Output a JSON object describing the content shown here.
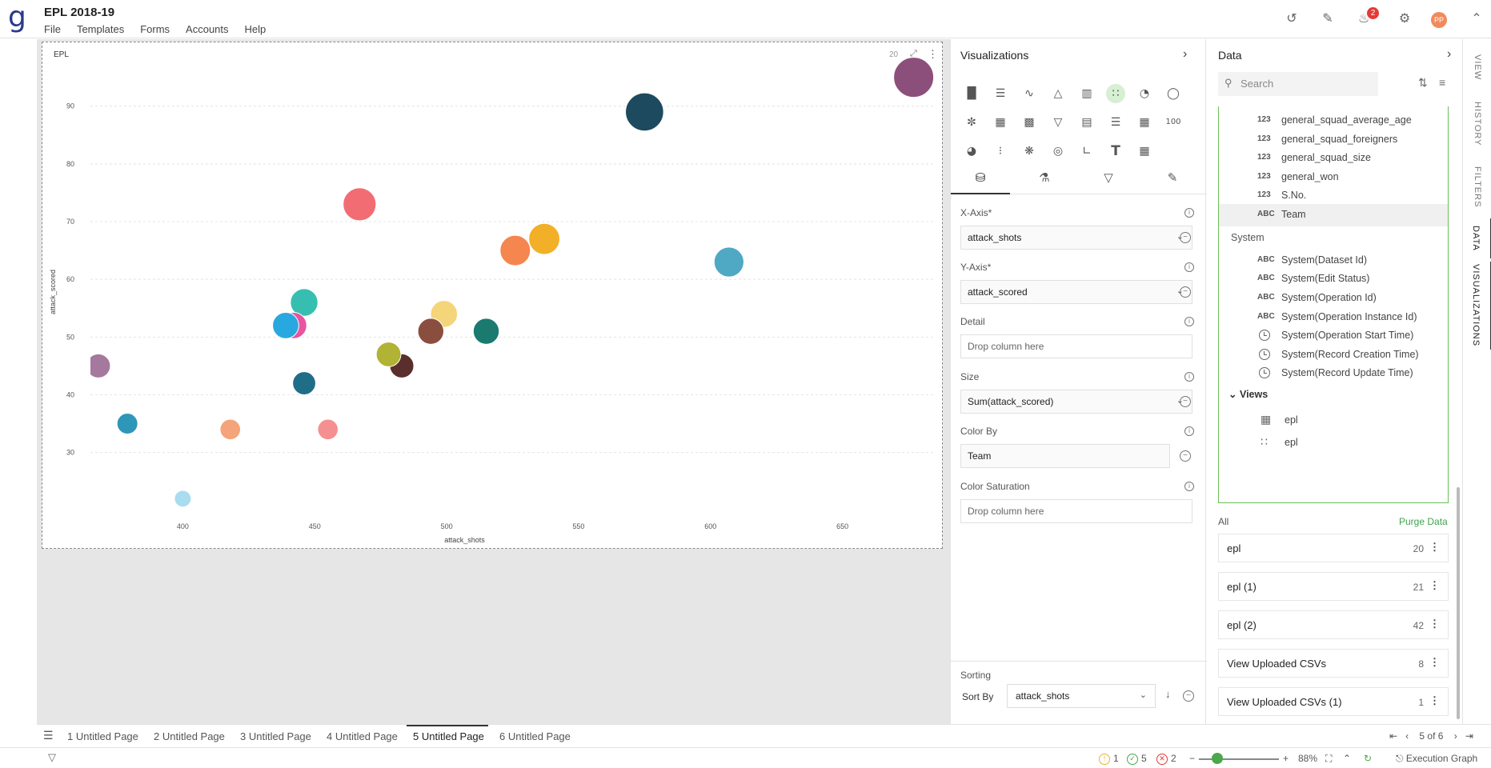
{
  "app": {
    "logo": "g",
    "title": "EPL 2018-19",
    "menu": [
      "File",
      "Templates",
      "Forms",
      "Accounts",
      "Help"
    ],
    "notification_count": "2",
    "user_initials": "PP"
  },
  "chart_widget": {
    "title": "EPL",
    "count": "20",
    "expand_icon": "expand-icon",
    "more_icon": "more-vertical-icon"
  },
  "chart_data": {
    "type": "scatter",
    "xlabel": "attack_shots",
    "ylabel": "attack_scored",
    "xlim": [
      365,
      685
    ],
    "ylim": [
      19,
      98
    ],
    "xticks": [
      400,
      450,
      500,
      550,
      600,
      650
    ],
    "yticks": [
      30,
      40,
      50,
      60,
      70,
      80,
      90
    ],
    "grid": true,
    "points": [
      {
        "x": 677,
        "y": 95,
        "size": 95,
        "color": "#8c4f7c"
      },
      {
        "x": 575,
        "y": 89,
        "size": 89,
        "color": "#1d4a5e"
      },
      {
        "x": 467,
        "y": 73,
        "size": 73,
        "color": "#f26d73"
      },
      {
        "x": 537,
        "y": 67,
        "size": 67,
        "color": "#f2b028"
      },
      {
        "x": 526,
        "y": 65,
        "size": 65,
        "color": "#f5864f"
      },
      {
        "x": 607,
        "y": 63,
        "size": 63,
        "color": "#4fa8c4"
      },
      {
        "x": 446,
        "y": 56,
        "size": 56,
        "color": "#36bfb0"
      },
      {
        "x": 499,
        "y": 54,
        "size": 54,
        "color": "#f5d57a"
      },
      {
        "x": 442,
        "y": 52,
        "size": 52,
        "color": "#e854a0"
      },
      {
        "x": 439,
        "y": 52,
        "size": 52,
        "color": "#29a8e0"
      },
      {
        "x": 515,
        "y": 51,
        "size": 51,
        "color": "#1a7a70"
      },
      {
        "x": 494,
        "y": 51,
        "size": 51,
        "color": "#8a4e3e"
      },
      {
        "x": 483,
        "y": 45,
        "size": 45,
        "color": "#5a2e2a"
      },
      {
        "x": 478,
        "y": 47,
        "size": 47,
        "color": "#b0b334"
      },
      {
        "x": 368,
        "y": 45,
        "size": 45,
        "color": "#a5789e"
      },
      {
        "x": 446,
        "y": 42,
        "size": 42,
        "color": "#206d88"
      },
      {
        "x": 379,
        "y": 35,
        "size": 35,
        "color": "#2e97b8"
      },
      {
        "x": 418,
        "y": 34,
        "size": 34,
        "color": "#f5a37a"
      },
      {
        "x": 455,
        "y": 34,
        "size": 34,
        "color": "#f59090"
      },
      {
        "x": 400,
        "y": 22,
        "size": 22,
        "color": "#a8dcef"
      }
    ]
  },
  "viz_panel": {
    "title": "Visualizations",
    "icons": [
      "column-chart-icon",
      "bar-chart-icon",
      "line-chart-icon",
      "area-chart-icon",
      "combo-chart-icon",
      "scatter-chart-icon",
      "pie-chart-icon",
      "donut-chart-icon",
      "sunburst-chart-icon",
      "pivot-table-icon",
      "card-icon",
      "funnel-icon",
      "table-icon",
      "list-icon",
      "tile-icon",
      "kpi-icon",
      "gauge-icon",
      "heatmap-icon",
      "network-icon",
      "globe-icon",
      "histogram-icon",
      "text-icon",
      "calendar-icon"
    ],
    "kpi_label": "100",
    "text_label": "T",
    "tabs": [
      "data-tab",
      "format-tab",
      "filter-tab",
      "analytics-tab"
    ],
    "fields": {
      "x_axis": {
        "label": "X-Axis*",
        "value": "attack_shots"
      },
      "y_axis": {
        "label": "Y-Axis*",
        "value": "attack_scored"
      },
      "detail": {
        "label": "Detail",
        "placeholder": "Drop column here"
      },
      "size": {
        "label": "Size",
        "value": "Sum(attack_scored)"
      },
      "color_by": {
        "label": "Color By",
        "value": "Team"
      },
      "color_saturation": {
        "label": "Color Saturation",
        "placeholder": "Drop column here"
      }
    },
    "sorting": {
      "title": "Sorting",
      "sort_by_label": "Sort By",
      "sort_by_value": "attack_shots"
    }
  },
  "data_panel": {
    "title": "Data",
    "search_placeholder": "Search",
    "fields": [
      {
        "type": "123",
        "name": "general_squad_average_age"
      },
      {
        "type": "123",
        "name": "general_squad_foreigners"
      },
      {
        "type": "123",
        "name": "general_squad_size"
      },
      {
        "type": "123",
        "name": "general_won"
      },
      {
        "type": "123",
        "name": "S.No."
      },
      {
        "type": "ABC",
        "name": "Team"
      }
    ],
    "system_label": "System",
    "system_fields": [
      {
        "type": "ABC",
        "name": "System(Dataset Id)"
      },
      {
        "type": "ABC",
        "name": "System(Edit Status)"
      },
      {
        "type": "ABC",
        "name": "System(Operation Id)"
      },
      {
        "type": "ABC",
        "name": "System(Operation Instance Id)"
      },
      {
        "type": "clock",
        "name": "System(Operation Start Time)"
      },
      {
        "type": "clock",
        "name": "System(Record Creation Time)"
      },
      {
        "type": "clock",
        "name": "System(Record Update Time)"
      }
    ],
    "views_label": "Views",
    "views": [
      {
        "icon": "table-view-icon",
        "name": "epl"
      },
      {
        "icon": "scatter-view-icon",
        "name": "epl"
      }
    ],
    "all_label": "All",
    "purge_label": "Purge Data",
    "datasets": [
      {
        "name": "epl",
        "count": "20"
      },
      {
        "name": "epl (1)",
        "count": "21"
      },
      {
        "name": "epl (2)",
        "count": "42"
      },
      {
        "name": "View Uploaded CSVs",
        "count": "8"
      },
      {
        "name": "View Uploaded CSVs (1)",
        "count": "1"
      }
    ]
  },
  "right_rail": [
    "VIEW",
    "HISTORY",
    "FILTERS",
    "DATA",
    "VISUALIZATIONS"
  ],
  "pages": [
    "1 Untitled Page",
    "2 Untitled Page",
    "3 Untitled Page",
    "4 Untitled Page",
    "5 Untitled Page",
    "6 Untitled Page"
  ],
  "page_nav": "5 of 6",
  "status": {
    "warnings": "1",
    "success": "5",
    "errors": "2",
    "zoom": "88%",
    "execution_graph": "Execution Graph"
  }
}
